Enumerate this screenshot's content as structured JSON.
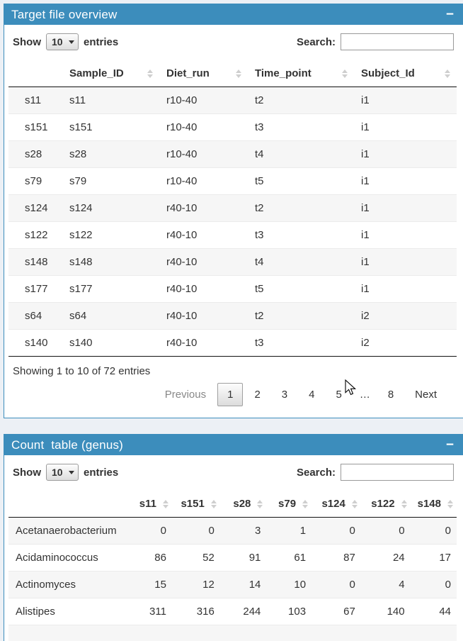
{
  "colors": {
    "accent": "#3c8dbc",
    "page_bg": "#ecf0f5",
    "stripe": "#f6f6f6"
  },
  "panels": [
    {
      "title": "Target file overview",
      "collapse_label": "−",
      "show_label": "Show",
      "page_length": "10",
      "entries_label": "entries",
      "search_label": "Search:",
      "search_value": "",
      "table": {
        "columns": [
          "",
          "Sample_ID",
          "Diet_run",
          "Time_point",
          "Subject_Id"
        ],
        "rows": [
          [
            "s11",
            "s11",
            "r10-40",
            "t2",
            "i1"
          ],
          [
            "s151",
            "s151",
            "r10-40",
            "t3",
            "i1"
          ],
          [
            "s28",
            "s28",
            "r10-40",
            "t4",
            "i1"
          ],
          [
            "s79",
            "s79",
            "r10-40",
            "t5",
            "i1"
          ],
          [
            "s124",
            "s124",
            "r40-10",
            "t2",
            "i1"
          ],
          [
            "s122",
            "s122",
            "r40-10",
            "t3",
            "i1"
          ],
          [
            "s148",
            "s148",
            "r40-10",
            "t4",
            "i1"
          ],
          [
            "s177",
            "s177",
            "r40-10",
            "t5",
            "i1"
          ],
          [
            "s64",
            "s64",
            "r40-10",
            "t2",
            "i2"
          ],
          [
            "s140",
            "s140",
            "r40-10",
            "t3",
            "i2"
          ]
        ]
      },
      "info": "Showing 1 to 10 of 72 entries",
      "pagination": {
        "previous": "Previous",
        "pages": [
          "1",
          "2",
          "3",
          "4",
          "5",
          "…",
          "8"
        ],
        "current_page": "1",
        "next": "Next"
      }
    },
    {
      "title": "Count  table (genus)",
      "collapse_label": "−",
      "show_label": "Show",
      "page_length": "10",
      "entries_label": "entries",
      "search_label": "Search:",
      "search_value": "",
      "table": {
        "columns": [
          "",
          "s11",
          "s151",
          "s28",
          "s79",
          "s124",
          "s122",
          "s148"
        ],
        "rows": [
          [
            "Acetanaerobacterium",
            "0",
            "0",
            "3",
            "1",
            "0",
            "0",
            "0"
          ],
          [
            "Acidaminococcus",
            "86",
            "52",
            "91",
            "61",
            "87",
            "24",
            "17"
          ],
          [
            "Actinomyces",
            "15",
            "12",
            "14",
            "10",
            "0",
            "4",
            "0"
          ],
          [
            "Alistipes",
            "311",
            "316",
            "244",
            "103",
            "67",
            "140",
            "44"
          ]
        ],
        "partial_next_row": true
      }
    }
  ]
}
